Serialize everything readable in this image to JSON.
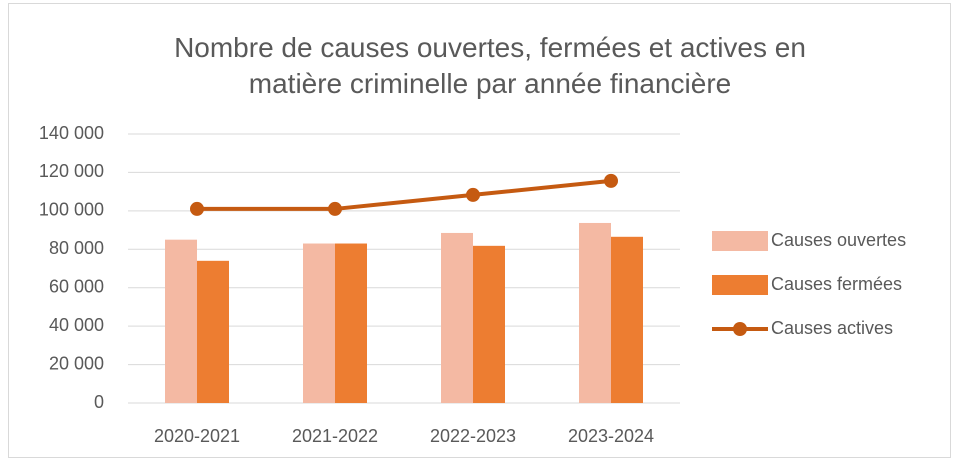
{
  "chart_data": {
    "type": "combo",
    "title": "Nombre de causes ouvertes, fermées et actives en matière criminelle par année financière",
    "categories": [
      "2020-2021",
      "2021-2022",
      "2022-2023",
      "2023-2024"
    ],
    "series": [
      {
        "name": "Causes ouvertes",
        "type": "bar",
        "color": "#f4b9a3",
        "values": [
          85000,
          83000,
          88500,
          93700
        ]
      },
      {
        "name": "Causes fermées",
        "type": "bar",
        "color": "#ed7d31",
        "values": [
          74000,
          83000,
          81800,
          86500
        ]
      },
      {
        "name": "Causes actives",
        "type": "line",
        "color": "#c55a11",
        "values": [
          101000,
          101000,
          108300,
          115600
        ]
      }
    ],
    "ylim": [
      0,
      140000
    ],
    "yticks": [
      0,
      {
        "value": 20000,
        "label": "20 000"
      },
      {
        "value": 40000,
        "label": "40 000"
      },
      {
        "value": 60000,
        "label": "60 000"
      },
      {
        "value": 80000,
        "label": "80 000"
      },
      {
        "value": 100000,
        "label": "100 000"
      },
      {
        "value": 120000,
        "label": "120 000"
      },
      {
        "value": 140000,
        "label": "140 000"
      }
    ],
    "grid": true,
    "legend": "right"
  }
}
